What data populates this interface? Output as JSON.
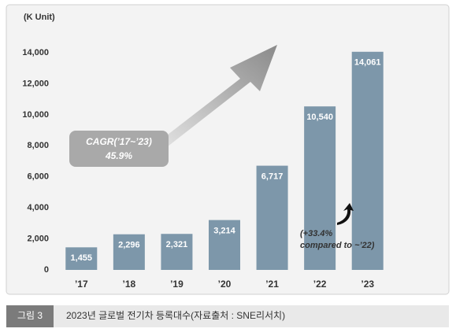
{
  "chart_data": {
    "type": "bar",
    "unit_label": "(K Unit)",
    "categories": [
      "’17",
      "’18",
      "’19",
      "’20",
      "’21",
      "’22",
      "’23"
    ],
    "values": [
      1455,
      2296,
      2321,
      3214,
      6717,
      10540,
      14061
    ],
    "value_labels": [
      "1,455",
      "2,296",
      "2,321",
      "3,214",
      "6,717",
      "10,540",
      "14,061"
    ],
    "color": "#7d97aa",
    "ylim": [
      0,
      14000
    ],
    "yticks": [
      0,
      {
        "value": 2000,
        "label": "2,000"
      },
      {
        "value": 4000,
        "label": "4,000"
      },
      {
        "value": 6000,
        "label": "6,000"
      },
      {
        "value": 8000,
        "label": "8,000"
      },
      {
        "value": 10000,
        "label": "10,000"
      },
      {
        "value": 12000,
        "label": "12,000"
      },
      {
        "value": 14000,
        "label": "14,000"
      }
    ],
    "grid": false,
    "annotations": [
      "CAGR(’17~’23)",
      "45.9%",
      "(+33.4%",
      "compared to ~’22)"
    ]
  },
  "caption": {
    "label": "그림 3",
    "text": "2023년 글로벌 전기차 등록대수(자료출처 : SNE리서치)"
  }
}
